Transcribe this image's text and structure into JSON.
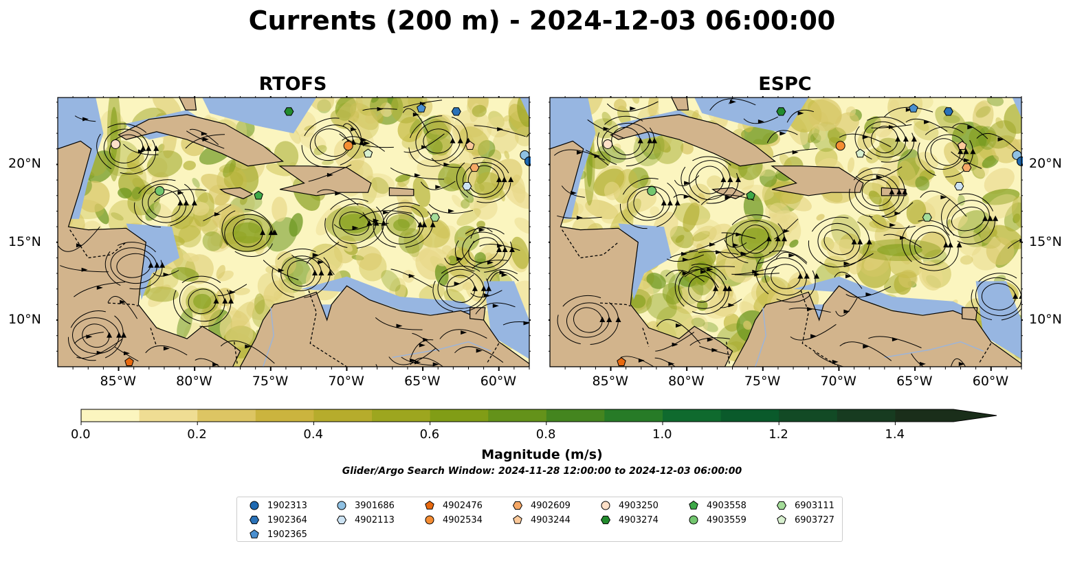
{
  "title": "Currents (200 m) - 2024-12-03 06:00:00",
  "panels": [
    {
      "title": "RTOFS",
      "side": "left"
    },
    {
      "title": "ESPC",
      "side": "right"
    }
  ],
  "x_ticks": [
    "85°W",
    "80°W",
    "75°W",
    "70°W",
    "65°W",
    "60°W"
  ],
  "y_ticks": [
    "20°N",
    "15°N",
    "10°N"
  ],
  "colorbar": {
    "label": "Magnitude (m/s)",
    "ticks": [
      "0.0",
      "0.2",
      "0.4",
      "0.6",
      "0.8",
      "1.0",
      "1.2",
      "1.4"
    ],
    "range": [
      0,
      1.5
    ],
    "extend": "max",
    "colors": [
      "#fbf5bf",
      "#efdd93",
      "#ddc563",
      "#cbb43e",
      "#b6ac2c",
      "#9da61f",
      "#819d16",
      "#64921a",
      "#44851f",
      "#277b27",
      "#0f6a2e",
      "#0a5a2b",
      "#124a25",
      "#173b20",
      "#1a2e1a"
    ]
  },
  "search_window": "Glider/Argo Search Window: 2024-11-28 12:00:00 to 2024-12-03 06:00:00",
  "colors": {
    "land": "#d2b48c",
    "shallow": "#97b6e1"
  },
  "legend": [
    {
      "id": "1902313",
      "marker": "circle",
      "color": "#1f69b1"
    },
    {
      "id": "1902364",
      "marker": "hexagon",
      "color": "#2a72b8"
    },
    {
      "id": "1902365",
      "marker": "pentagon",
      "color": "#4a8fcf"
    },
    {
      "id": "3901686",
      "marker": "circle",
      "color": "#8fc1e3"
    },
    {
      "id": "4902113",
      "marker": "hexagon",
      "color": "#cde3f3"
    },
    {
      "id": "4902476",
      "marker": "pentagon",
      "color": "#e8690f"
    },
    {
      "id": "4902534",
      "marker": "circle",
      "color": "#f58d33"
    },
    {
      "id": "4902609",
      "marker": "hexagon",
      "color": "#f6a866"
    },
    {
      "id": "4903244",
      "marker": "pentagon",
      "color": "#fbc99a"
    },
    {
      "id": "4903250",
      "marker": "circle",
      "color": "#fde0c8"
    },
    {
      "id": "4903274",
      "marker": "hexagon",
      "color": "#228b2d"
    },
    {
      "id": "4903558",
      "marker": "pentagon",
      "color": "#3ea948"
    },
    {
      "id": "4903559",
      "marker": "circle",
      "color": "#73c66f"
    },
    {
      "id": "6903111",
      "marker": "hexagon",
      "color": "#a4dc99"
    },
    {
      "id": "6903727",
      "marker": "pentagon",
      "color": "#d8f0cf"
    }
  ],
  "floats_on_map": [
    {
      "id": "4903274",
      "lon": -73.8,
      "lat": 23.4
    },
    {
      "id": "1902365",
      "lon": -65.1,
      "lat": 23.6
    },
    {
      "id": "1902364",
      "lon": -62.8,
      "lat": 23.4
    },
    {
      "id": "4903250",
      "lon": -85.2,
      "lat": 21.3
    },
    {
      "id": "4902534",
      "lon": -69.9,
      "lat": 21.2
    },
    {
      "id": "6903727",
      "lon": -68.6,
      "lat": 20.7
    },
    {
      "id": "4903244",
      "lon": -61.9,
      "lat": 21.2
    },
    {
      "id": "4902609",
      "lon": -61.6,
      "lat": 19.8
    },
    {
      "id": "4902113",
      "lon": -62.1,
      "lat": 18.6
    },
    {
      "id": "3901686",
      "lon": -58.3,
      "lat": 20.6
    },
    {
      "id": "1902313",
      "lon": -58.0,
      "lat": 20.2
    },
    {
      "id": "4903559",
      "lon": -82.3,
      "lat": 18.3
    },
    {
      "id": "4903558",
      "lon": -75.8,
      "lat": 18.0
    },
    {
      "id": "6903111",
      "lon": -64.2,
      "lat": 16.6
    },
    {
      "id": "4902476",
      "lon": -84.3,
      "lat": 7.3
    }
  ]
}
